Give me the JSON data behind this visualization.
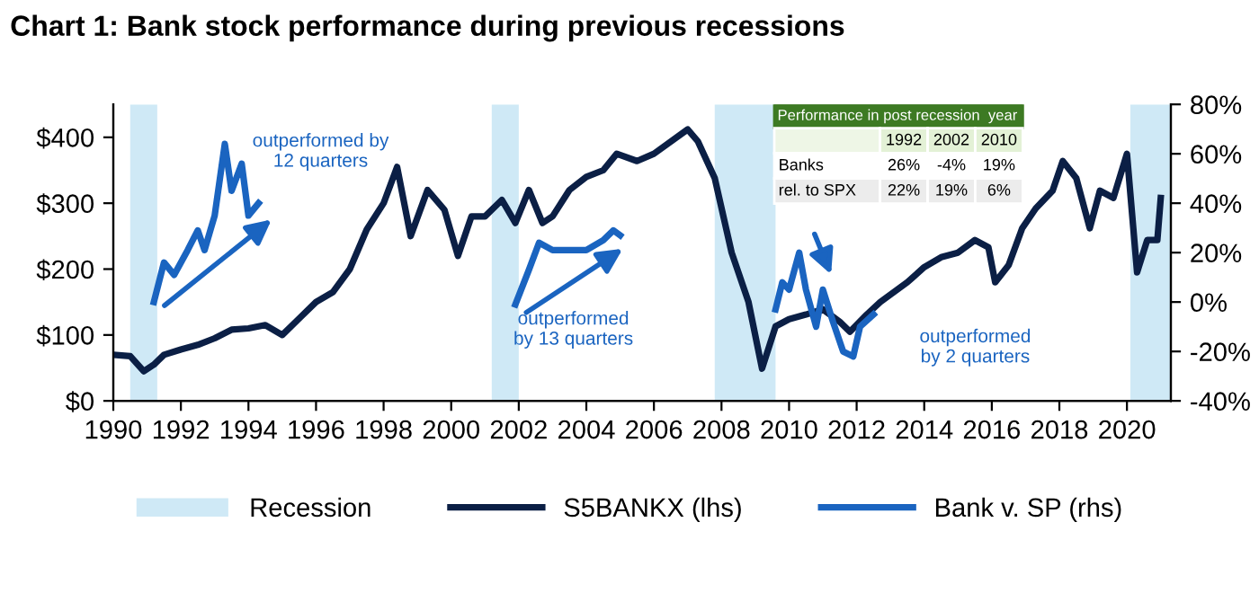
{
  "chart_data": {
    "type": "line",
    "title": "Chart 1: Bank stock performance during previous recessions",
    "xlim": [
      1990,
      2021.3
    ],
    "xticks": [
      1990,
      1992,
      1994,
      1996,
      1998,
      2000,
      2002,
      2004,
      2006,
      2008,
      2010,
      2012,
      2014,
      2016,
      2018,
      2020
    ],
    "ylim": [
      0,
      450
    ],
    "yticks": [
      {
        "value": 0,
        "label": "$0"
      },
      {
        "value": 100,
        "label": "$100"
      },
      {
        "value": 200,
        "label": "$200"
      },
      {
        "value": 300,
        "label": "$300"
      },
      {
        "value": 400,
        "label": "$400"
      }
    ],
    "y2lim": [
      -40,
      80
    ],
    "y2ticks": [
      {
        "value": -40,
        "label": "-40%"
      },
      {
        "value": -20,
        "label": "-20%"
      },
      {
        "value": 0,
        "label": "0%"
      },
      {
        "value": 20,
        "label": "20%"
      },
      {
        "value": 40,
        "label": "40%"
      },
      {
        "value": 60,
        "label": "60%"
      },
      {
        "value": 80,
        "label": "80%"
      }
    ],
    "grid": false,
    "legend": "bottom",
    "bands": [
      {
        "axis": "x",
        "from": 1990.5,
        "to": 1991.3,
        "label": "Recession",
        "color": "#cfe9f6"
      },
      {
        "axis": "x",
        "from": 2001.2,
        "to": 2002.0,
        "color": "#cfe9f6"
      },
      {
        "axis": "x",
        "from": 2007.8,
        "to": 2009.6,
        "color": "#cfe9f6"
      },
      {
        "axis": "x",
        "from": 2020.1,
        "to": 2021.3,
        "color": "#cfe9f6"
      }
    ],
    "series": [
      {
        "name": "S5BANKX (lhs)",
        "color": "#0b1f45",
        "x": [
          1990,
          1990.5,
          1990.9,
          1991.2,
          1991.5,
          1992,
          1992.5,
          1993,
          1993.5,
          1994,
          1994.5,
          1995,
          1995.5,
          1996,
          1996.5,
          1997,
          1997.5,
          1998,
          1998.4,
          1998.8,
          1999.3,
          1999.8,
          2000.2,
          2000.6,
          2001,
          2001.5,
          2001.9,
          2002.3,
          2002.7,
          2003,
          2003.5,
          2004,
          2004.5,
          2004.9,
          2005.5,
          2006,
          2007,
          2007.3,
          2007.8,
          2008.3,
          2008.8,
          2009.2,
          2009.6,
          2010,
          2010.5,
          2011,
          2011.5,
          2011.8,
          2012.3,
          2012.7,
          2013.5,
          2014,
          2014.5,
          2015,
          2015.5,
          2015.9,
          2016.1,
          2016.5,
          2016.9,
          2017.3,
          2017.8,
          2018.1,
          2018.5,
          2018.9,
          2019.2,
          2019.6,
          2020.0,
          2020.3,
          2020.6,
          2020.9,
          2021.0
        ],
        "values": [
          70,
          68,
          45,
          55,
          70,
          78,
          85,
          95,
          108,
          110,
          115,
          100,
          125,
          150,
          165,
          200,
          260,
          300,
          355,
          250,
          320,
          290,
          220,
          280,
          280,
          305,
          270,
          320,
          270,
          280,
          320,
          340,
          350,
          375,
          364,
          375,
          412,
          394,
          338,
          225,
          150,
          49,
          113,
          124,
          131,
          139,
          120,
          105,
          131,
          150,
          180,
          203,
          218,
          225,
          244,
          233,
          180,
          206,
          262,
          292,
          319,
          364,
          338,
          262,
          319,
          308,
          375,
          195,
          244,
          244,
          308
        ]
      },
      {
        "name": "Bank v. SP (rhs)",
        "color": "#1a64c0",
        "axis": "y2",
        "x": [
          1991.2,
          1991.5,
          1991.8,
          1992.2,
          1992.5,
          1992.7,
          1993,
          1993.3,
          1993.5,
          1993.8,
          1994,
          1994.3,
          1995,
          1999,
          2001.9,
          2002.3,
          2002.6,
          2003,
          2003.5,
          2004,
          2004.5,
          2004.8,
          2005,
          2007,
          2009.6,
          2009.8,
          2010,
          2010.3,
          2010.5,
          2010.8,
          2011,
          2011.3,
          2011.6,
          2011.9,
          2012.1,
          2012.5
        ],
        "values": [
          0,
          16,
          11,
          21,
          29,
          21,
          35,
          64,
          45,
          56,
          35,
          40,
          null,
          null,
          -1,
          13,
          24,
          21,
          21,
          21,
          25,
          29,
          27,
          null,
          -3,
          8,
          5,
          20,
          5,
          -10,
          5,
          -8,
          -20,
          -22,
          -10,
          -5
        ]
      }
    ],
    "annotations": [
      "outperformed by\n12 quarters",
      "outperformed\nby 13 quarters",
      "outperformed\nby 2 quarters",
      "Performance in post recession  year",
      "1992",
      "2002",
      "2010",
      "Banks",
      "26%",
      "-4%",
      "19%",
      "rel. to SPX",
      "22%",
      "19%",
      "6%"
    ]
  }
}
